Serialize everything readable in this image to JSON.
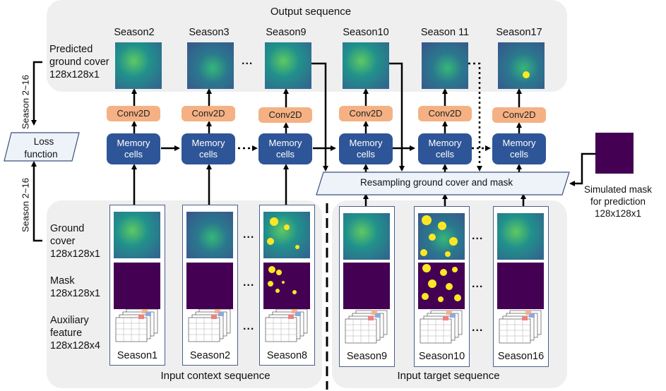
{
  "output_title": "Output sequence",
  "predicted_label": [
    "Predicted",
    "ground cover",
    "128x128x1"
  ],
  "output_seasons": [
    "Season2",
    "Season3",
    "Season9",
    "Season10",
    "Season 11",
    "Season17"
  ],
  "conv_label": "Conv2D",
  "memory_label": [
    "Memory",
    "cells"
  ],
  "loss_label": [
    "Loss",
    "function"
  ],
  "loss_range_top": "Season 2~16",
  "loss_range_bottom": "Season 2~16",
  "resample_label": "Resampling ground cover and mask",
  "sim_mask_label": [
    "Simulated mask",
    "for prediction",
    "128x128x1"
  ],
  "ground_cover_label": [
    "Ground",
    "cover",
    "128x128x1"
  ],
  "mask_label": [
    "Mask",
    "128x128x1"
  ],
  "aux_label": [
    "Auxiliary",
    "feature",
    "128x128x4"
  ],
  "context_seasons": [
    "Season1",
    "Season2",
    "Season8"
  ],
  "target_seasons": [
    "Season9",
    "Season10",
    "Season16"
  ],
  "context_title": "Input context sequence",
  "target_title": "Input target sequence",
  "ellipsis": "...",
  "colors": {
    "memory": "#2e5597",
    "conv": "#f5b183",
    "mask": "#440154",
    "highlight": "#fde725",
    "panel": "#efefef"
  }
}
